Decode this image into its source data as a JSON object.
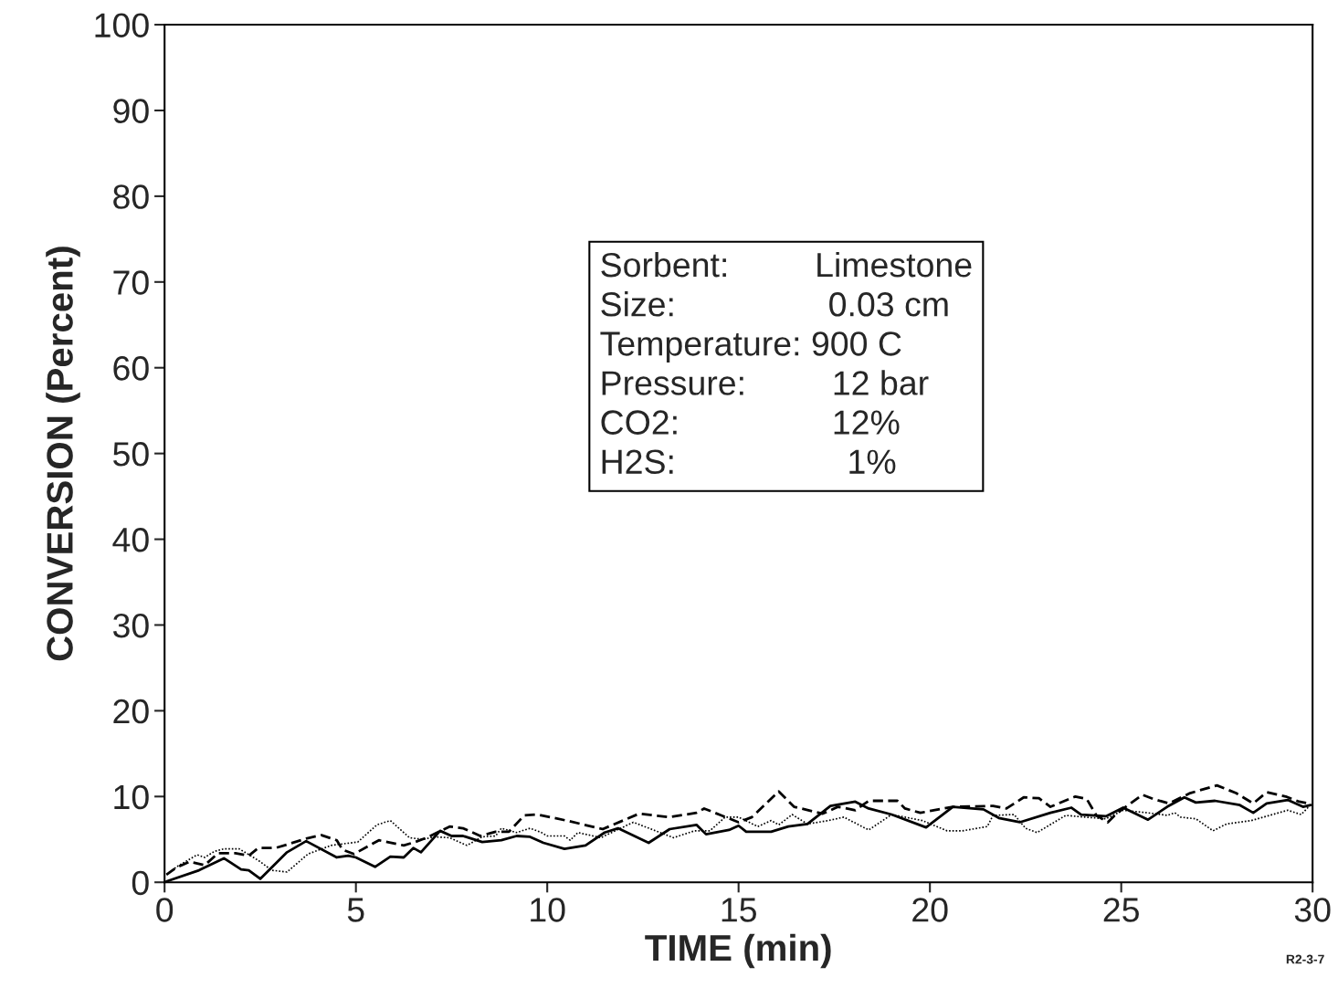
{
  "chart_data": {
    "type": "line",
    "xlabel": "TIME (min)",
    "ylabel": "CONVERSION (Percent)",
    "xlim": [
      0,
      30
    ],
    "ylim": [
      0,
      100
    ],
    "xticks": [
      0,
      5,
      10,
      15,
      20,
      25,
      30
    ],
    "yticks": [
      0,
      10,
      20,
      30,
      40,
      50,
      60,
      70,
      80,
      90,
      100
    ],
    "grid": false,
    "legend": false,
    "series": [
      {
        "color": "#000000",
        "line_style": "solid",
        "x": [
          0.05,
          0.9,
          1.55,
          2.0,
          2.2,
          2.5,
          3.2,
          3.7,
          4.5,
          4.8,
          5.0,
          5.5,
          5.9,
          6.25,
          6.5,
          6.7,
          7.2,
          7.5,
          7.8,
          8.3,
          8.8,
          9.2,
          9.55,
          9.9,
          10.45,
          11.0,
          11.5,
          11.85,
          12.65,
          13.2,
          13.9,
          14.15,
          14.75,
          15.0,
          15.2,
          15.85,
          16.3,
          16.8,
          17.4,
          18.05,
          18.4,
          19.0,
          19.9,
          20.6,
          21.4,
          21.8,
          22.35,
          23.15,
          23.7,
          23.95,
          24.6,
          25.05,
          25.7,
          26.2,
          26.65,
          26.95,
          27.45,
          28.1,
          28.45,
          28.8,
          29.35,
          29.75,
          29.95
        ],
        "values": [
          0.1,
          1.4,
          2.8,
          1.5,
          1.4,
          0.4,
          3.5,
          4.8,
          2.9,
          3.1,
          2.9,
          1.8,
          3.0,
          2.9,
          4.0,
          3.5,
          6.0,
          5.4,
          5.4,
          4.7,
          4.9,
          5.4,
          5.3,
          4.6,
          3.9,
          4.3,
          5.8,
          6.3,
          4.6,
          6.2,
          6.7,
          5.6,
          6.1,
          6.6,
          5.9,
          5.9,
          6.5,
          6.8,
          8.9,
          9.4,
          8.6,
          7.9,
          6.4,
          8.8,
          8.5,
          7.5,
          7.0,
          8.1,
          8.7,
          7.9,
          7.7,
          8.7,
          7.3,
          8.8,
          9.9,
          9.3,
          9.5,
          9.0,
          8.1,
          9.2,
          9.6,
          8.8,
          9.0
        ]
      },
      {
        "color": "#000000",
        "line_style": "dashed",
        "x": [
          0.05,
          0.3,
          0.65,
          1.05,
          1.4,
          1.85,
          2.2,
          2.45,
          2.9,
          3.2,
          3.7,
          4.1,
          4.5,
          4.65,
          4.95,
          5.6,
          6.25,
          6.55,
          6.85,
          7.45,
          7.8,
          8.25,
          8.65,
          9.0,
          9.4,
          9.75,
          10.5,
          11.45,
          12.4,
          13.2,
          13.9,
          14.1,
          14.55,
          15.0,
          15.35,
          16.05,
          16.45,
          17.2,
          17.6,
          18.05,
          18.4,
          19.15,
          19.35,
          19.75,
          20.6,
          21.65,
          22.0,
          22.45,
          22.85,
          23.15,
          23.8,
          24.1,
          24.35,
          24.65,
          24.9,
          25.55,
          25.85,
          26.25,
          26.8,
          27.5,
          28.0,
          28.45,
          28.8,
          29.3,
          29.65,
          29.9
        ],
        "values": [
          0.9,
          1.7,
          2.4,
          2.0,
          3.4,
          3.4,
          3.1,
          4.0,
          4.0,
          4.4,
          5.1,
          5.5,
          4.9,
          3.8,
          3.3,
          4.9,
          4.3,
          4.7,
          5.2,
          6.5,
          6.3,
          5.4,
          5.9,
          5.9,
          7.8,
          7.9,
          7.2,
          6.2,
          8.0,
          7.6,
          8.1,
          8.6,
          7.8,
          7.0,
          7.6,
          10.6,
          8.8,
          8.0,
          8.8,
          8.4,
          9.5,
          9.5,
          8.6,
          8.1,
          8.8,
          8.9,
          8.6,
          9.9,
          9.8,
          8.8,
          10.0,
          9.7,
          7.8,
          7.0,
          8.1,
          10.2,
          9.7,
          9.2,
          10.4,
          11.3,
          10.4,
          9.2,
          10.5,
          10.0,
          9.4,
          9.2
        ]
      },
      {
        "color": "#000000",
        "line_style": "dotted",
        "x": [
          0.05,
          0.35,
          0.85,
          1.05,
          1.3,
          1.55,
          1.95,
          2.25,
          2.5,
          2.8,
          3.2,
          3.75,
          4.35,
          5.05,
          5.55,
          5.9,
          6.4,
          6.75,
          7.05,
          7.45,
          7.9,
          8.3,
          8.65,
          8.8,
          9.2,
          9.55,
          9.85,
          10.0,
          10.45,
          10.6,
          10.8,
          11.4,
          12.25,
          13.3,
          13.85,
          14.25,
          14.65,
          15.0,
          15.5,
          15.85,
          16.05,
          16.4,
          16.8,
          17.35,
          17.75,
          18.4,
          19.0,
          19.8,
          20.45,
          20.85,
          21.5,
          21.65,
          22.2,
          22.5,
          22.8,
          23.55,
          24.05,
          24.6,
          25.05,
          25.7,
          26.2,
          26.4,
          26.55,
          26.95,
          27.4,
          27.75,
          28.4,
          29.35,
          29.7,
          29.9
        ],
        "values": [
          0.9,
          1.9,
          3.2,
          2.9,
          3.6,
          3.9,
          3.9,
          3.1,
          2.4,
          1.4,
          1.2,
          3.3,
          4.3,
          4.7,
          6.7,
          7.2,
          5.2,
          5.0,
          5.3,
          5.2,
          4.3,
          5.3,
          5.4,
          6.3,
          5.8,
          6.3,
          5.8,
          5.4,
          5.4,
          4.9,
          5.8,
          5.2,
          7.0,
          5.2,
          6.0,
          6.0,
          7.6,
          7.6,
          6.5,
          7.2,
          6.7,
          7.9,
          6.8,
          7.2,
          7.6,
          6.1,
          7.9,
          7.2,
          6.0,
          6.0,
          6.5,
          7.8,
          7.9,
          6.3,
          5.8,
          7.8,
          7.6,
          7.4,
          8.4,
          8.1,
          7.8,
          8.1,
          7.6,
          7.4,
          6.0,
          6.8,
          7.2,
          8.4,
          7.9,
          8.8
        ]
      }
    ],
    "annotations": [
      "Sorbent:         Limestone\nSize:                0.03 cm\nTemperature: 900 C\nPressure:         12 bar\nCO2:                12%\nH2S:                  1%",
      "R2-3-7"
    ]
  }
}
